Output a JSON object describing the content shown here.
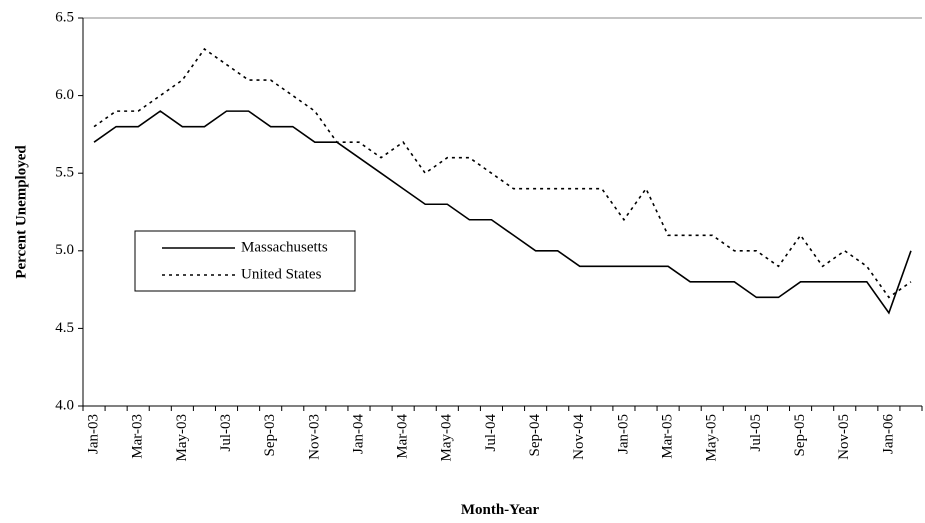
{
  "chart_data": {
    "type": "line",
    "x_label": "Month-Year",
    "y_label": "Percent Unemployed",
    "categories": [
      "Jan-03",
      null,
      "Mar-03",
      null,
      "May-03",
      null,
      "Jul-03",
      null,
      "Sep-03",
      null,
      "Nov-03",
      null,
      "Jan-04",
      null,
      "Mar-04",
      null,
      "May-04",
      null,
      "Jul-04",
      null,
      "Sep-04",
      null,
      "Nov-04",
      null,
      "Jan-05",
      null,
      "Mar-05",
      null,
      "May-05",
      null,
      "Jul-05",
      null,
      "Sep-05",
      null,
      "Nov-05",
      null,
      "Jan-06",
      null
    ],
    "series": [
      {
        "name": "Massachusetts",
        "color": "#000000",
        "dash": "solid",
        "values": [
          5.7,
          5.8,
          5.8,
          5.9,
          5.8,
          5.8,
          5.9,
          5.9,
          5.8,
          5.8,
          5.7,
          5.7,
          5.6,
          5.5,
          5.4,
          5.3,
          5.3,
          5.2,
          5.2,
          5.1,
          5.0,
          5.0,
          4.9,
          4.9,
          4.9,
          4.9,
          4.9,
          4.8,
          4.8,
          4.8,
          4.7,
          4.7,
          4.8,
          4.8,
          4.8,
          4.8,
          4.6,
          5.0
        ]
      },
      {
        "name": "United States",
        "color": "#000000",
        "dash": "dotted",
        "values": [
          5.8,
          5.9,
          5.9,
          6.0,
          6.1,
          6.3,
          6.2,
          6.1,
          6.1,
          6.0,
          5.9,
          5.7,
          5.7,
          5.6,
          5.7,
          5.5,
          5.6,
          5.6,
          5.5,
          5.4,
          5.4,
          5.4,
          5.4,
          5.4,
          5.2,
          5.4,
          5.1,
          5.1,
          5.1,
          5.0,
          5.0,
          4.9,
          5.1,
          4.9,
          5.0,
          4.9,
          4.7,
          4.8
        ]
      }
    ],
    "ylim": [
      4.0,
      6.5
    ],
    "yticks": [
      {
        "value": 4.0,
        "label": "4.0"
      },
      4.5,
      {
        "value": 5.0,
        "label": "5.0"
      },
      5.5,
      {
        "value": 6.0,
        "label": "6.0"
      },
      6.5
    ],
    "grid": false,
    "legend": "left"
  }
}
